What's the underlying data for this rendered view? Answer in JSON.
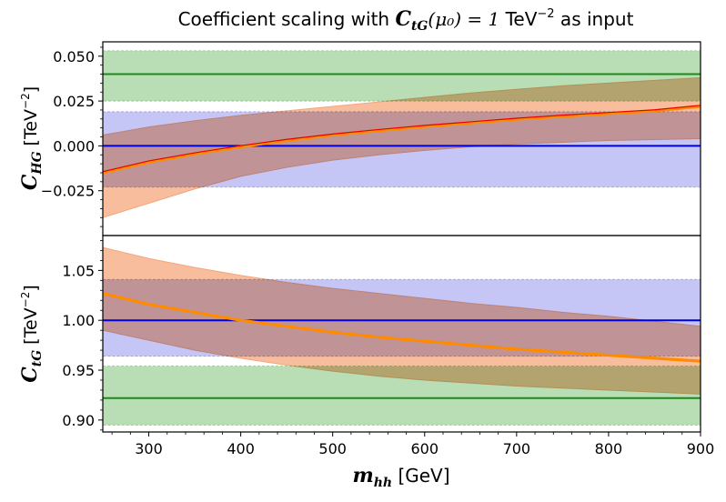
{
  "title": {
    "pre": "Coefficient scaling with ",
    "sym": "C",
    "sub": "tG",
    "arg": "(μ₀) = 1",
    "unit": " TeV",
    "exp": "−2",
    "post": " as input"
  },
  "colors": {
    "green_band": "#b9ddb4",
    "green_line": "#1a8a1a",
    "blue_band": "#c6c6f6",
    "blue_line": "#0000dd",
    "orange_band": "#f6b28c",
    "overlap_band": "#dd9f9f",
    "orange_line": "#ff8c00",
    "red_line": "#e80000"
  },
  "chart_data": [
    {
      "type": "line",
      "panel": "top",
      "ylabel_symbol": "C",
      "ylabel_sub": "HG",
      "ylabel_unit": "[TeV",
      "ylabel_exp": "−2",
      "ylabel_close": "]",
      "xlim": [
        250,
        900
      ],
      "ylim": [
        -0.05,
        0.058
      ],
      "yticks": [
        -0.025,
        0.0,
        0.025,
        0.05
      ],
      "ytick_labels": [
        "−0.025",
        "0.000",
        "0.025",
        "0.050"
      ],
      "green_band": {
        "low": 0.025,
        "high": 0.053,
        "center": 0.04
      },
      "blue_band": {
        "low": -0.023,
        "high": 0.019,
        "center": 0.0
      },
      "series": {
        "x": [
          250,
          300,
          350,
          400,
          450,
          500,
          550,
          600,
          650,
          700,
          750,
          800,
          850,
          900
        ],
        "central": [
          -0.015,
          -0.009,
          -0.0045,
          -0.0005,
          0.003,
          0.006,
          0.0085,
          0.0108,
          0.0128,
          0.0148,
          0.0165,
          0.018,
          0.0195,
          0.022
        ],
        "upper": [
          0.006,
          0.0105,
          0.014,
          0.017,
          0.0195,
          0.022,
          0.0245,
          0.027,
          0.0295,
          0.0315,
          0.0335,
          0.035,
          0.0365,
          0.038
        ],
        "lower": [
          -0.04,
          -0.032,
          -0.024,
          -0.017,
          -0.012,
          -0.008,
          -0.005,
          -0.0025,
          -0.0005,
          0.001,
          0.002,
          0.003,
          0.0035,
          0.004
        ]
      }
    },
    {
      "type": "line",
      "panel": "bottom",
      "ylabel_symbol": "C",
      "ylabel_sub": "tG",
      "ylabel_unit": "[TeV",
      "ylabel_exp": "−2",
      "ylabel_close": "]",
      "xlim": [
        250,
        900
      ],
      "ylim": [
        0.888,
        1.085
      ],
      "yticks": [
        0.9,
        0.95,
        1.0,
        1.05
      ],
      "ytick_labels": [
        "0.90",
        "0.95",
        "1.00",
        "1.05"
      ],
      "green_band": {
        "low": 0.895,
        "high": 0.954,
        "center": 0.922
      },
      "blue_band": {
        "low": 0.964,
        "high": 1.041,
        "center": 1.0
      },
      "series": {
        "x": [
          250,
          300,
          350,
          400,
          450,
          500,
          550,
          600,
          650,
          700,
          750,
          800,
          850,
          900
        ],
        "central": [
          1.027,
          1.016,
          1.008,
          1.0,
          0.994,
          0.988,
          0.983,
          0.979,
          0.975,
          0.971,
          0.968,
          0.965,
          0.962,
          0.959
        ],
        "upper": [
          1.073,
          1.062,
          1.053,
          1.045,
          1.038,
          1.032,
          1.027,
          1.022,
          1.017,
          1.013,
          1.008,
          1.004,
          0.999,
          0.994
        ],
        "lower": [
          0.99,
          0.98,
          0.97,
          0.962,
          0.955,
          0.949,
          0.944,
          0.94,
          0.937,
          0.934,
          0.932,
          0.93,
          0.928,
          0.926
        ]
      }
    }
  ],
  "xaxis": {
    "ticks": [
      300,
      400,
      500,
      600,
      700,
      800,
      900
    ],
    "tick_labels": [
      "300",
      "400",
      "500",
      "600",
      "700",
      "800",
      "900"
    ],
    "label_symbol": "m",
    "label_sub": "hh",
    "label_unit": " [GeV]"
  }
}
